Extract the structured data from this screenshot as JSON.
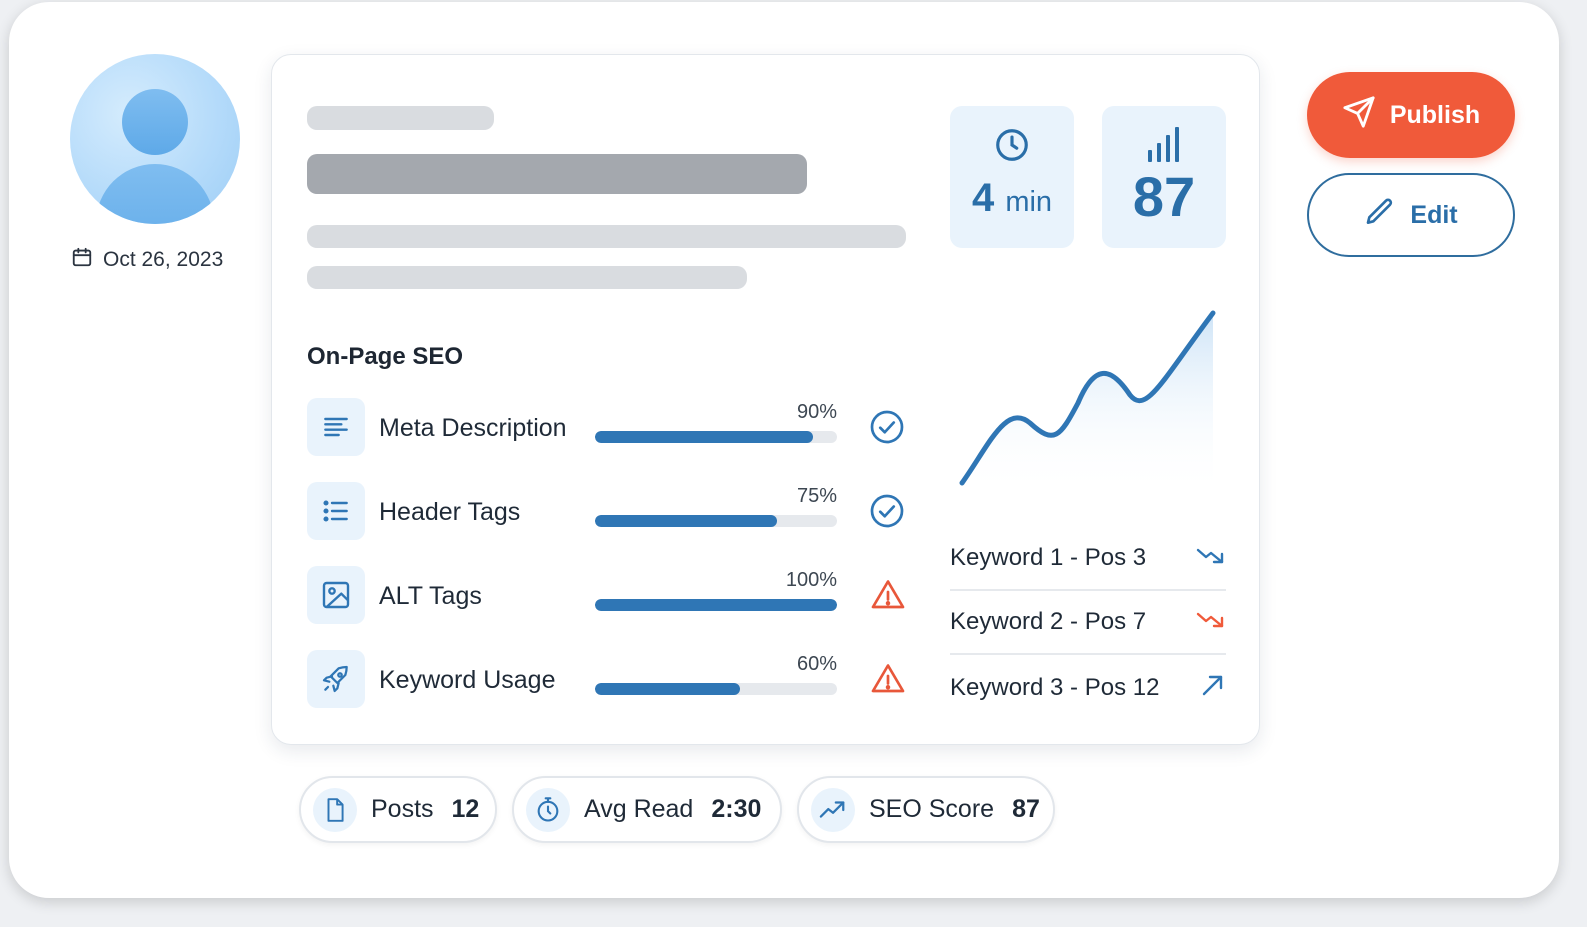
{
  "profile": {
    "date": "Oct 26, 2023"
  },
  "stats": {
    "read_time_value": "4",
    "read_time_unit": "min",
    "score": "87"
  },
  "seo": {
    "title": "On-Page SEO",
    "items": [
      {
        "label": "Meta Description",
        "percent_text": "90%",
        "percent": 90,
        "status": "ok"
      },
      {
        "label": "Header Tags",
        "percent_text": "75%",
        "percent": 75,
        "status": "ok"
      },
      {
        "label": "ALT Tags",
        "percent_text": "100%",
        "percent": 100,
        "status": "warning"
      },
      {
        "label": "Keyword Usage",
        "percent_text": "60%",
        "percent": 60,
        "status": "warning"
      }
    ]
  },
  "keywords": [
    {
      "label": "Keyword 1 - Pos 3",
      "trend": "down",
      "color": "#2f76b5"
    },
    {
      "label": "Keyword 2 - Pos 7",
      "trend": "down",
      "color": "#f05a3a"
    },
    {
      "label": "Keyword 3 - Pos 12",
      "trend": "up",
      "color": "#2f76b5"
    }
  ],
  "actions": {
    "publish_label": "Publish",
    "edit_label": "Edit"
  },
  "summary": {
    "posts_label": "Posts",
    "posts_value": "12",
    "avg_read_label": "Avg Read",
    "avg_read_value": "2:30",
    "seo_score_label": "SEO Score",
    "seo_score_value": "87"
  },
  "colors": {
    "accent": "#2f76b5",
    "publish": "#f05a3a",
    "warning": "#e8573a",
    "ok": "#2f76b5"
  },
  "icons": [
    "calendar-icon",
    "clock-icon",
    "signal-bars-icon",
    "text-lines-icon",
    "list-icon",
    "image-icon",
    "rocket-icon",
    "check-circle-icon",
    "warning-icon",
    "send-icon",
    "pencil-icon",
    "document-icon",
    "stopwatch-icon",
    "trending-up-icon"
  ]
}
